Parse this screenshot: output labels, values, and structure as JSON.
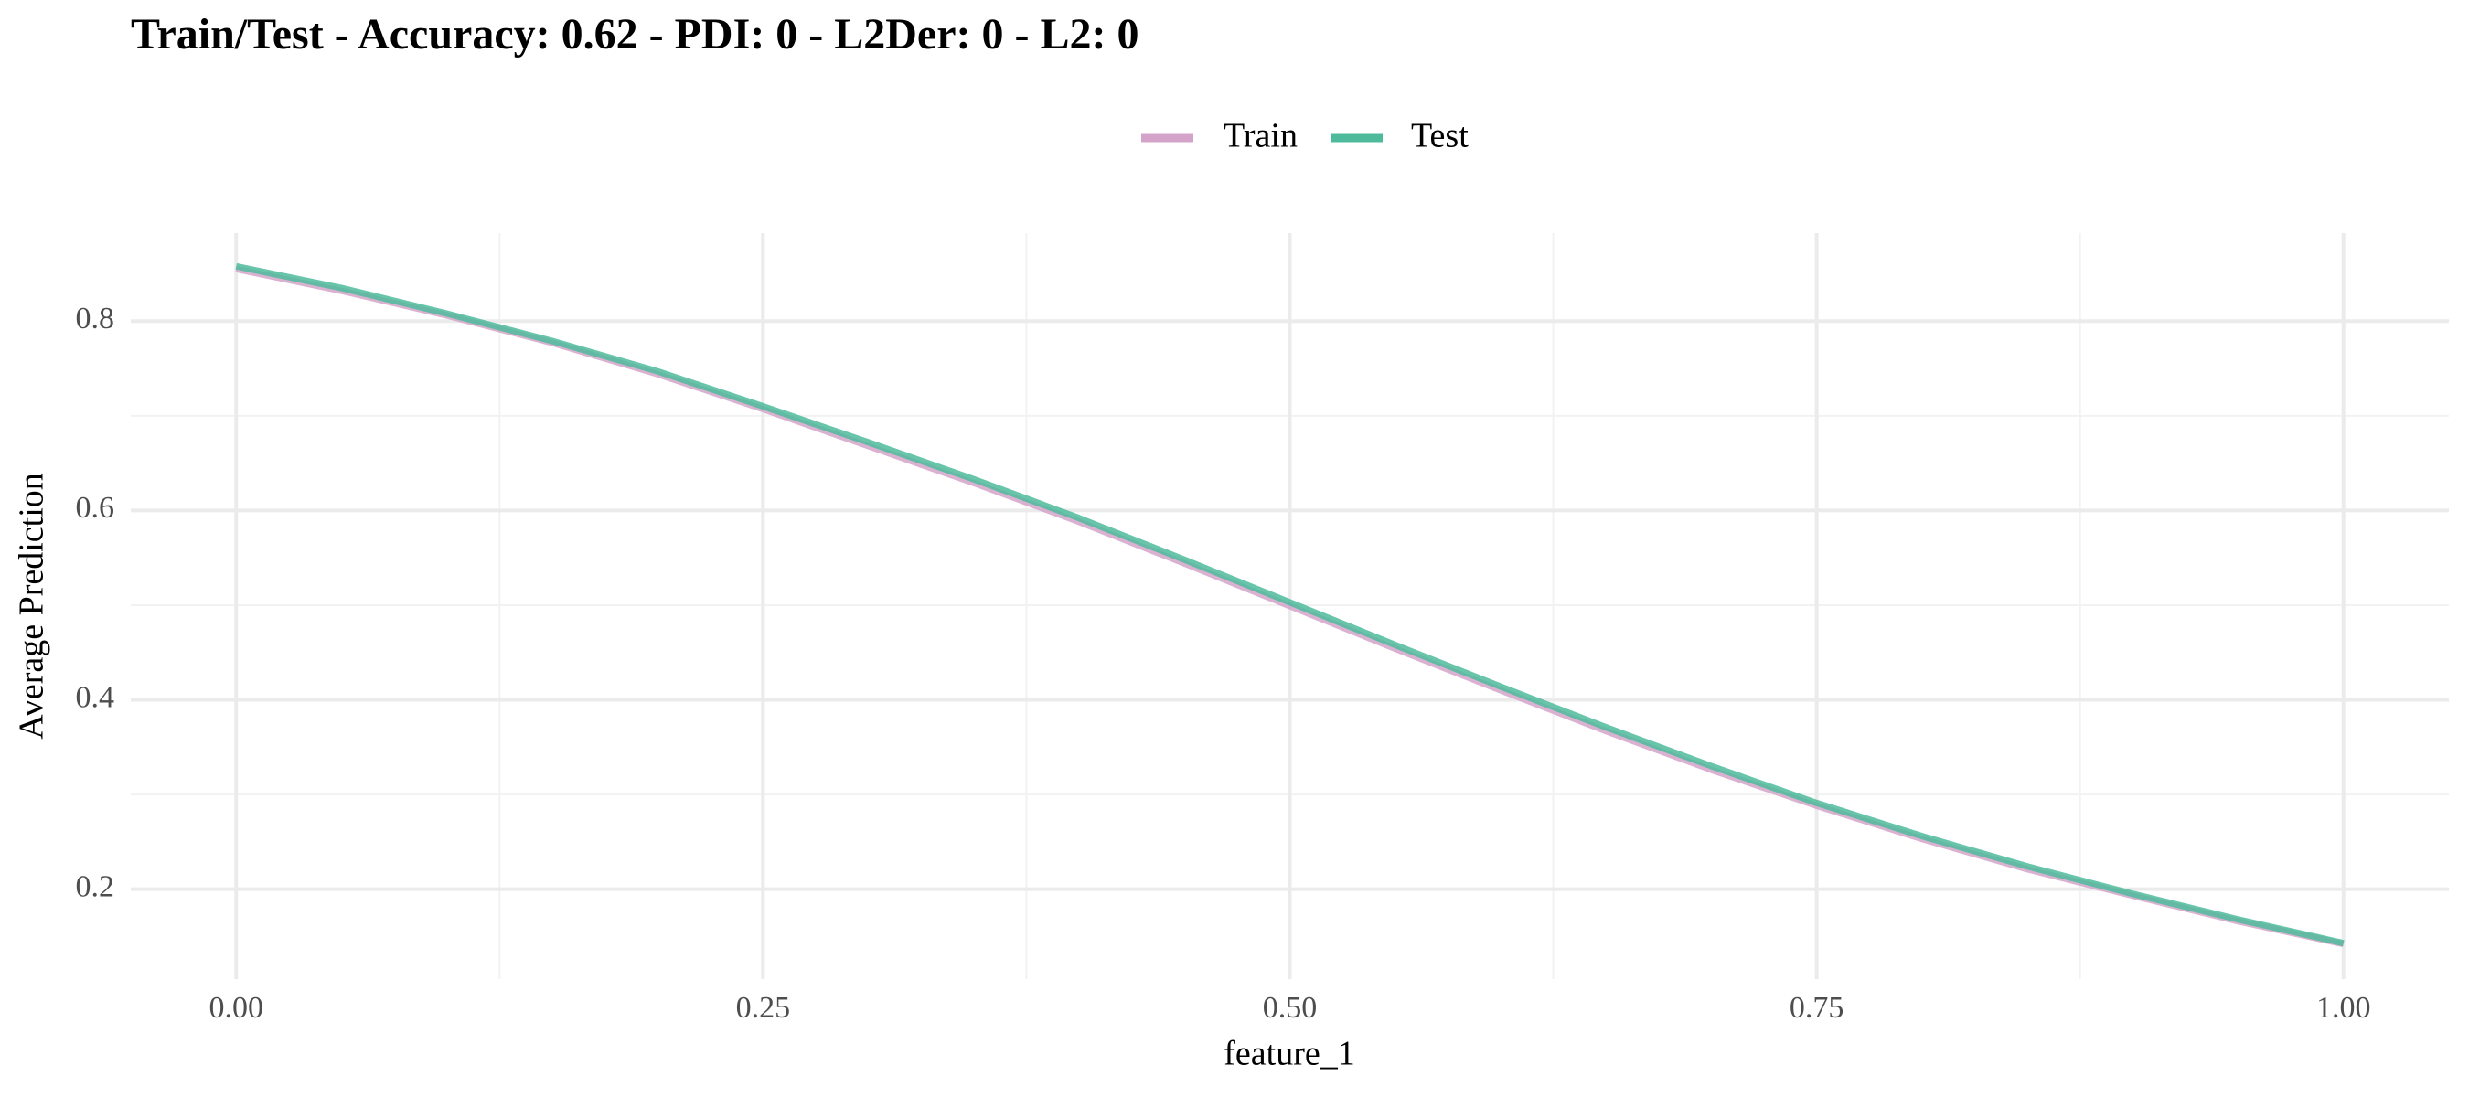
{
  "chart_data": {
    "type": "line",
    "title": "Train/Test - Accuracy: 0.62 - PDI: 0 - L2Der: 0 - L2: 0",
    "x_label": "feature_1",
    "y_label": "Average Prediction",
    "x": [
      0,
      0.05,
      0.1,
      0.15,
      0.2,
      0.25,
      0.3,
      0.35,
      0.4,
      0.45,
      0.5,
      0.55,
      0.6,
      0.65,
      0.7,
      0.75,
      0.8,
      0.85,
      0.9,
      0.95,
      1
    ],
    "series": [
      {
        "name": "Train",
        "color": "#d4a3c9",
        "values": [
          0.855,
          0.832,
          0.806,
          0.777,
          0.744,
          0.707,
          0.668,
          0.629,
          0.588,
          0.544,
          0.499,
          0.454,
          0.41,
          0.367,
          0.326,
          0.288,
          0.253,
          0.221,
          0.193,
          0.166,
          0.142
        ]
      },
      {
        "name": "Test",
        "color": "#4dbb9b",
        "values": [
          0.858,
          0.835,
          0.808,
          0.779,
          0.747,
          0.71,
          0.672,
          0.633,
          0.592,
          0.548,
          0.503,
          0.458,
          0.414,
          0.371,
          0.33,
          0.291,
          0.256,
          0.224,
          0.195,
          0.168,
          0.143
        ]
      }
    ],
    "xlim": [
      -0.05,
      1.05
    ],
    "ylim": [
      0.105,
      0.893
    ],
    "xticks": [
      {
        "value": 0,
        "label": "0.00"
      },
      {
        "value": 0.25,
        "label": "0.25"
      },
      {
        "value": 0.5,
        "label": "0.50"
      },
      {
        "value": 0.75,
        "label": "0.75"
      },
      {
        "value": 1,
        "label": "1.00"
      }
    ],
    "yticks": [
      0.2,
      0.4,
      0.6,
      0.8
    ],
    "xminor": [
      0.125,
      0.375,
      0.625,
      0.875
    ],
    "yminor": [
      0.3,
      0.5,
      0.7
    ],
    "grid": true,
    "legend": "top"
  }
}
